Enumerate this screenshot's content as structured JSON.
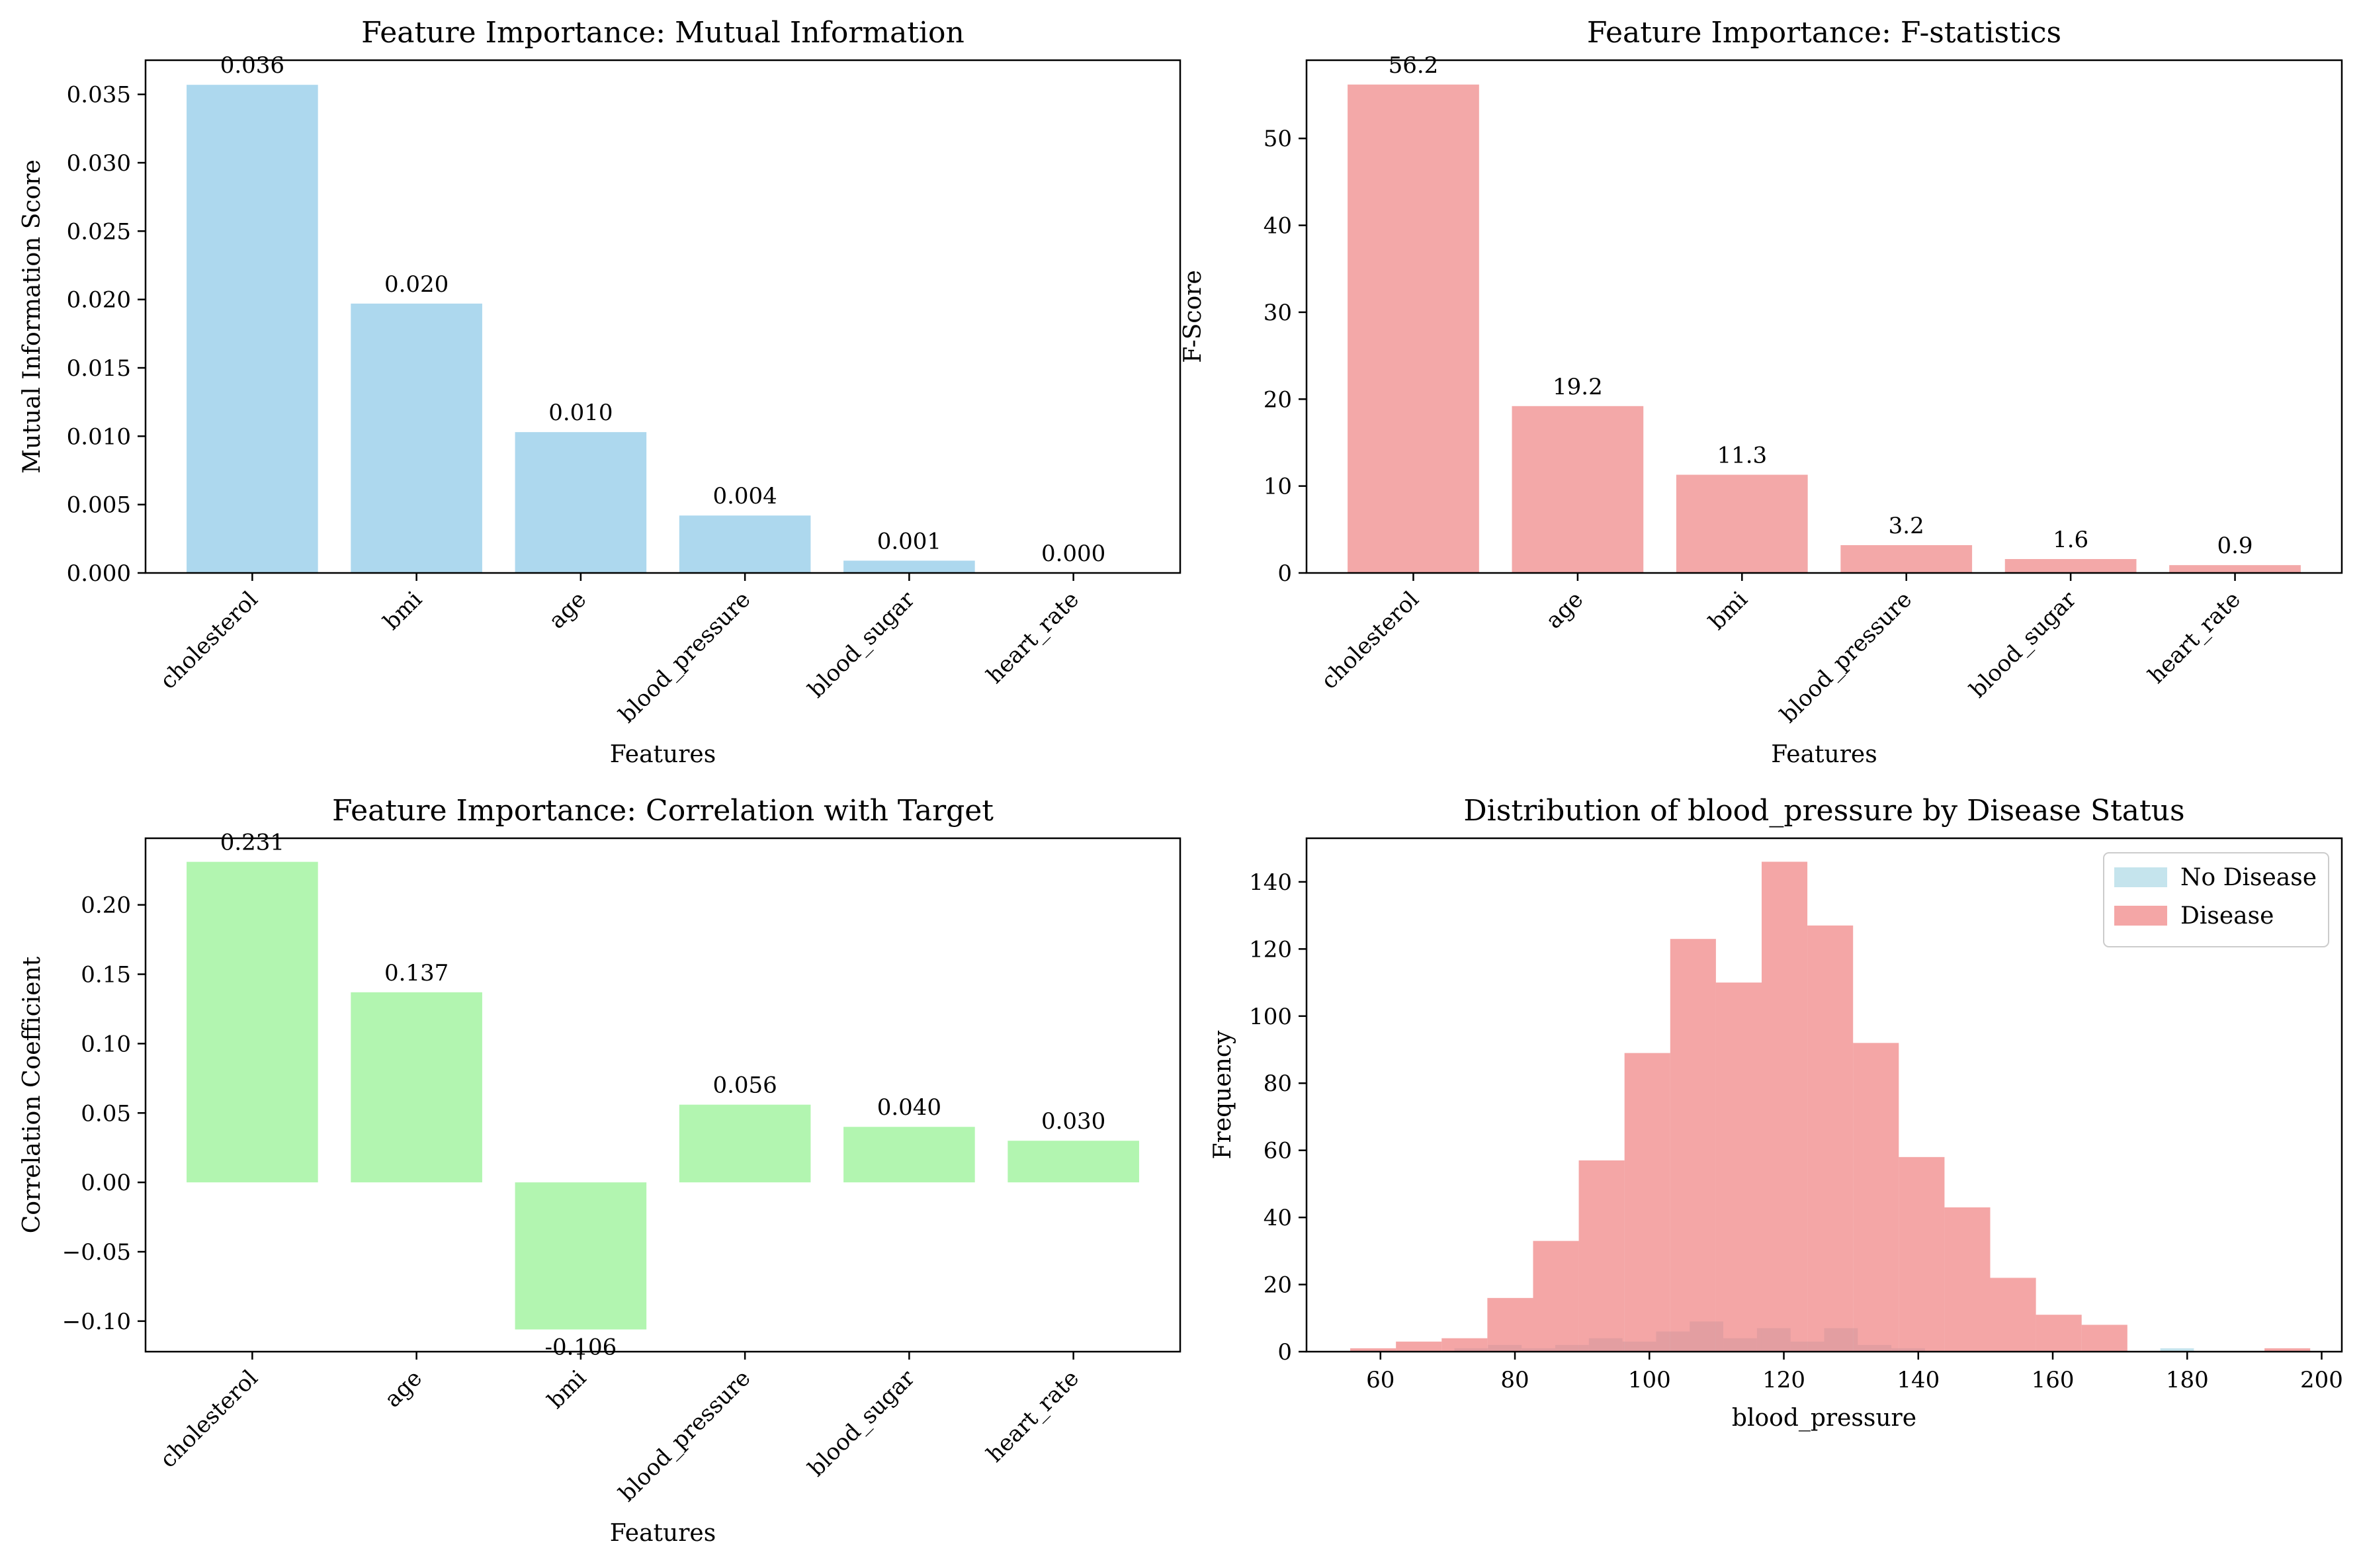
{
  "colors": {
    "mi_bar": "#add8ee",
    "f_bar": "#f3a8a8",
    "corr_bar": "#b2f5b0",
    "no_disease": "#add8e6",
    "disease": "#f08080"
  },
  "chart_data": [
    {
      "type": "bar",
      "title": "Feature Importance: Mutual Information",
      "xlabel": "Features",
      "ylabel": "Mutual Information Score",
      "categories": [
        "cholesterol",
        "bmi",
        "age",
        "blood_pressure",
        "blood_sugar",
        "heart_rate"
      ],
      "values": [
        0.0357,
        0.0197,
        0.0103,
        0.0042,
        0.0009,
        0.0
      ],
      "value_labels": [
        "0.036",
        "0.020",
        "0.010",
        "0.004",
        "0.001",
        "0.000"
      ],
      "ylim": [
        0,
        0.0375
      ],
      "yticks": [
        0,
        0.005,
        0.01,
        0.015,
        0.02,
        0.025,
        0.03,
        0.035
      ],
      "ytick_labels": [
        "0.000",
        "0.005",
        "0.010",
        "0.015",
        "0.020",
        "0.025",
        "0.030",
        "0.035"
      ]
    },
    {
      "type": "bar",
      "title": "Feature Importance: F-statistics",
      "xlabel": "Features",
      "ylabel": "F-Score",
      "categories": [
        "cholesterol",
        "age",
        "bmi",
        "blood_pressure",
        "blood_sugar",
        "heart_rate"
      ],
      "values": [
        56.2,
        19.2,
        11.3,
        3.2,
        1.6,
        0.9
      ],
      "value_labels": [
        "56.2",
        "19.2",
        "11.3",
        "3.2",
        "1.6",
        "0.9"
      ],
      "ylim": [
        0,
        59
      ],
      "yticks": [
        0,
        10,
        20,
        30,
        40,
        50
      ],
      "ytick_labels": [
        "0",
        "10",
        "20",
        "30",
        "40",
        "50"
      ]
    },
    {
      "type": "bar",
      "title": "Feature Importance: Correlation with Target",
      "xlabel": "Features",
      "ylabel": "Correlation Coefficient",
      "categories": [
        "cholesterol",
        "age",
        "bmi",
        "blood_pressure",
        "blood_sugar",
        "heart_rate"
      ],
      "values": [
        0.231,
        0.137,
        -0.106,
        0.056,
        0.04,
        0.03
      ],
      "value_labels": [
        "0.231",
        "0.137",
        "-0.106",
        "0.056",
        "0.040",
        "0.030"
      ],
      "ylim": [
        -0.122,
        0.248
      ],
      "yticks": [
        -0.1,
        -0.05,
        0.0,
        0.05,
        0.1,
        0.15,
        0.2
      ],
      "ytick_labels": [
        "−0.10",
        "−0.05",
        "0.00",
        "0.05",
        "0.10",
        "0.15",
        "0.20"
      ]
    },
    {
      "type": "histogram",
      "title": "Distribution of blood_pressure by Disease Status",
      "xlabel": "blood_pressure",
      "ylabel": "Frequency",
      "xlim": [
        49,
        203
      ],
      "ylim": [
        0,
        153
      ],
      "xticks": [
        60,
        80,
        100,
        120,
        140,
        160,
        180,
        200
      ],
      "xtick_labels": [
        "60",
        "80",
        "100",
        "120",
        "140",
        "160",
        "180",
        "200"
      ],
      "yticks": [
        0,
        20,
        40,
        60,
        80,
        100,
        120,
        140
      ],
      "ytick_labels": [
        "0",
        "20",
        "40",
        "60",
        "80",
        "100",
        "120",
        "140"
      ],
      "legend_position": "top-right",
      "series": [
        {
          "name": "No Disease",
          "bins": [
            [
              71,
              76,
              1
            ],
            [
              76,
              81,
              2
            ],
            [
              81,
              86,
              1
            ],
            [
              86,
              91,
              2
            ],
            [
              91,
              96,
              4
            ],
            [
              96,
              101,
              3
            ],
            [
              101,
              106,
              6
            ],
            [
              106,
              111,
              9
            ],
            [
              111,
              116,
              4
            ],
            [
              116,
              121,
              7
            ],
            [
              121,
              126,
              3
            ],
            [
              126,
              131,
              7
            ],
            [
              131,
              136,
              2
            ],
            [
              136,
              141,
              1
            ],
            [
              176,
              181,
              1
            ]
          ]
        },
        {
          "name": "Disease",
          "bins": [
            [
              55.5,
              62.3,
              1
            ],
            [
              62.3,
              69.1,
              3
            ],
            [
              69.1,
              75.9,
              4
            ],
            [
              75.9,
              82.7,
              16
            ],
            [
              82.7,
              89.5,
              33
            ],
            [
              89.5,
              96.3,
              57
            ],
            [
              96.3,
              103.1,
              89
            ],
            [
              103.1,
              109.9,
              123
            ],
            [
              109.9,
              116.7,
              110
            ],
            [
              116.7,
              123.5,
              146
            ],
            [
              123.5,
              130.3,
              127
            ],
            [
              130.3,
              137.1,
              92
            ],
            [
              137.1,
              143.9,
              58
            ],
            [
              143.9,
              150.7,
              43
            ],
            [
              150.7,
              157.5,
              22
            ],
            [
              157.5,
              164.3,
              11
            ],
            [
              164.3,
              171.1,
              8
            ],
            [
              171.1,
              177.9,
              0
            ],
            [
              177.9,
              184.7,
              0
            ],
            [
              184.7,
              191.5,
              0
            ],
            [
              191.5,
              198.3,
              1
            ]
          ]
        }
      ]
    }
  ]
}
